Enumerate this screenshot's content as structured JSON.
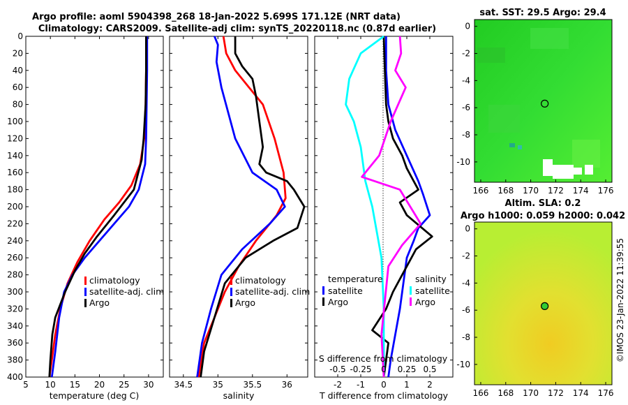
{
  "title_line1": "Argo profile: aoml 5904398_268 18-Jan-2022 5.699S 171.12E (NRT data)",
  "title_line2": "Climatology: CARS2009. Satellite-adj clim: synTS_20220118.nc (0.87d earlier)",
  "credit": "©IMOS 23-Jan-2022 11:39:55",
  "colors": {
    "climatology": "#ff0000",
    "satellite": "#0000ff",
    "argo": "#000000",
    "sat_diff": "#00ffff",
    "sal_diff": "#ff00ff"
  },
  "chart_data": [
    {
      "type": "line",
      "id": "temperature",
      "xlabel": "temperature (deg C)",
      "xlim": [
        5,
        33
      ],
      "xticks": [
        5,
        10,
        15,
        20,
        25,
        30
      ],
      "ylim": [
        0,
        400
      ],
      "yticks": [
        0,
        20,
        40,
        60,
        80,
        100,
        120,
        140,
        160,
        180,
        200,
        220,
        240,
        260,
        280,
        300,
        320,
        340,
        360,
        380,
        400
      ],
      "legend": [
        "climatology",
        "satellite-adj. clim",
        "Argo"
      ],
      "series": [
        {
          "name": "climatology",
          "color": "#ff0000",
          "x": [
            29.6,
            29.5,
            29.4,
            29.1,
            28.3,
            26.5,
            24.0,
            21.0,
            18.0,
            15.5,
            13.5,
            12.0,
            11.0,
            10.3,
            9.8
          ],
          "y": [
            0,
            40,
            80,
            120,
            150,
            175,
            195,
            215,
            240,
            265,
            290,
            320,
            350,
            380,
            400
          ]
        },
        {
          "name": "satellite-adj. clim",
          "color": "#0000ff",
          "x": [
            29.7,
            29.7,
            29.6,
            29.5,
            29.3,
            28.0,
            26.0,
            23.0,
            20.0,
            17.0,
            14.5,
            12.8,
            11.8,
            11.0,
            10.3
          ],
          "y": [
            0,
            40,
            80,
            120,
            150,
            180,
            200,
            220,
            240,
            260,
            280,
            300,
            330,
            370,
            400
          ]
        },
        {
          "name": "Argo",
          "color": "#000000",
          "x": [
            29.5,
            29.5,
            29.4,
            29.0,
            28.6,
            27.0,
            23.0,
            19.5,
            17.0,
            15.0,
            13.0,
            11.0,
            10.4,
            10.0,
            9.8
          ],
          "y": [
            0,
            40,
            80,
            120,
            145,
            180,
            210,
            235,
            255,
            275,
            300,
            330,
            350,
            380,
            400
          ]
        }
      ]
    },
    {
      "type": "line",
      "id": "salinity",
      "xlabel": "salinity",
      "xlim": [
        34.3,
        36.3
      ],
      "xticks": [
        34.5,
        35,
        35.5,
        36
      ],
      "legend": [
        "climatology",
        "satellite-adj. clim",
        "Argo"
      ],
      "series": [
        {
          "name": "climatology",
          "color": "#ff0000",
          "x": [
            35.08,
            35.12,
            35.25,
            35.45,
            35.65,
            35.82,
            35.95,
            35.98,
            35.85,
            35.55,
            35.3,
            35.1,
            34.95,
            34.8,
            34.72
          ],
          "y": [
            0,
            20,
            40,
            60,
            80,
            120,
            160,
            190,
            210,
            240,
            270,
            300,
            330,
            360,
            400
          ]
        },
        {
          "name": "satellite-adj. clim",
          "color": "#0000ff",
          "x": [
            34.95,
            35.0,
            34.98,
            35.05,
            35.15,
            35.25,
            35.5,
            35.85,
            35.97,
            35.75,
            35.35,
            35.05,
            34.9,
            34.77,
            34.7
          ],
          "y": [
            0,
            10,
            30,
            60,
            90,
            120,
            160,
            180,
            200,
            220,
            250,
            280,
            320,
            360,
            400
          ]
        },
        {
          "name": "Argo",
          "color": "#000000",
          "x": [
            35.25,
            35.25,
            35.35,
            35.5,
            35.55,
            35.6,
            35.65,
            35.6,
            35.7,
            36.0,
            36.1,
            36.25,
            36.15,
            35.8,
            35.4,
            35.1,
            34.95,
            34.8,
            34.75
          ],
          "y": [
            0,
            20,
            35,
            50,
            70,
            100,
            130,
            150,
            160,
            170,
            180,
            200,
            225,
            240,
            260,
            290,
            330,
            370,
            400
          ]
        }
      ]
    },
    {
      "type": "line",
      "id": "difference",
      "xlabel": "T difference from climatology",
      "xlabel_top": "S difference from climatology",
      "xlim": [
        -3,
        3
      ],
      "xticks": [
        -2,
        -1,
        0,
        1,
        2
      ],
      "xticks_top": [
        "-0.5",
        "-0.25",
        "0",
        "0.25",
        "0.5"
      ],
      "legend_left": [
        "temperature",
        "satellite",
        "Argo"
      ],
      "legend_right": [
        "salinity",
        "satellite",
        "Argo"
      ],
      "series": [
        {
          "name": "T satellite",
          "color": "#0000ff",
          "x": [
            0.1,
            0.1,
            0.2,
            0.5,
            1.0,
            1.5,
            1.7,
            2.0,
            1.5,
            1.3,
            1.0,
            0.9,
            0.8,
            0.7,
            0.5,
            0.3,
            0.2
          ],
          "y": [
            0,
            40,
            80,
            110,
            140,
            170,
            185,
            210,
            225,
            240,
            260,
            280,
            300,
            320,
            350,
            380,
            400
          ]
        },
        {
          "name": "T Argo",
          "color": "#000000",
          "x": [
            0,
            0.05,
            0.1,
            0.2,
            0.4,
            0.8,
            1.0,
            1.3,
            1.5,
            0.7,
            1.0,
            2.1,
            1.4,
            0.8,
            0.4,
            0.1,
            -0.5,
            0.2,
            0.0
          ],
          "y": [
            0,
            40,
            80,
            100,
            120,
            140,
            155,
            170,
            180,
            195,
            210,
            235,
            250,
            280,
            300,
            320,
            345,
            360,
            400
          ]
        },
        {
          "name": "S satellite",
          "color": "#00ffff",
          "x": [
            0,
            -1.0,
            -1.5,
            -1.65,
            -1.3,
            -1.0,
            -0.8,
            -0.5,
            -0.3,
            -0.1,
            -0.05,
            0,
            0,
            0
          ],
          "y": [
            0,
            20,
            50,
            80,
            100,
            130,
            170,
            200,
            230,
            260,
            290,
            320,
            360,
            400
          ]
        },
        {
          "name": "S Argo",
          "color": "#ff00ff",
          "x": [
            0.7,
            0.75,
            0.5,
            0.95,
            0.3,
            -0.2,
            -0.95,
            0.7,
            1.6,
            0.8,
            0.2,
            -0.1,
            0.0
          ],
          "y": [
            0,
            20,
            40,
            60,
            100,
            140,
            165,
            180,
            220,
            245,
            270,
            350,
            400
          ]
        }
      ]
    },
    {
      "type": "heatmap",
      "id": "sst_map",
      "title": "sat. SST: 29.5 Argo: 29.4",
      "xticks": [
        166,
        168,
        170,
        172,
        174,
        176
      ],
      "yticks": [
        0,
        -2,
        -4,
        -6,
        -8,
        -10
      ],
      "xlim": [
        165.5,
        176.5
      ],
      "ylim": [
        -11.5,
        0.5
      ],
      "marker": {
        "lon": 171.12,
        "lat": -5.699
      }
    },
    {
      "type": "heatmap",
      "id": "sla_map",
      "title_line1": "Altim. SLA: 0.2",
      "title_line2": "Argo h1000: 0.059 h2000: 0.042",
      "xticks": [
        166,
        168,
        170,
        172,
        174,
        176
      ],
      "yticks": [
        0,
        -2,
        -4,
        -6,
        -8,
        -10
      ],
      "xlim": [
        165.5,
        176.5
      ],
      "ylim": [
        -11.5,
        0.5
      ],
      "marker": {
        "lon": 171.12,
        "lat": -5.699
      }
    }
  ]
}
